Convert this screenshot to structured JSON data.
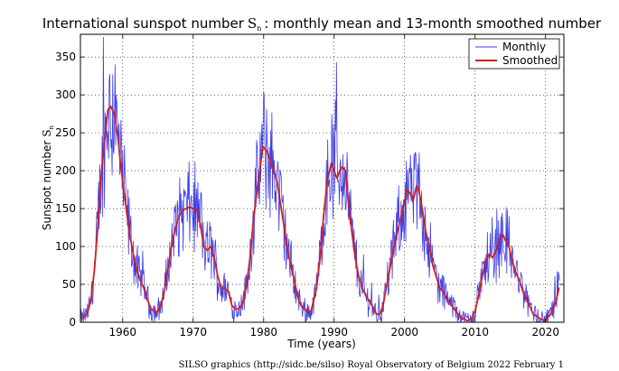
{
  "chart_data": {
    "type": "line",
    "title_prefix": "International sunspot number",
    "title_symbol": "S",
    "title_symbol_sub": "n",
    "title_suffix": ": monthly mean and 13-month smoothed number",
    "xlabel": "Time (years)",
    "ylabel_prefix": "Sunspot number",
    "ylabel_symbol": "S",
    "ylabel_symbol_sub": "n",
    "xlim": [
      1954,
      2022.6
    ],
    "ylim": [
      0,
      380
    ],
    "x_ticks": [
      1960,
      1970,
      1980,
      1990,
      2000,
      2010,
      2020
    ],
    "y_ticks": [
      0,
      50,
      100,
      150,
      200,
      250,
      300,
      350
    ],
    "grid": true,
    "legend_position": "top-right",
    "series": [
      {
        "name": "Monthly",
        "color": "#3d3de8",
        "sampling": "monthly",
        "envelope": "smoothed"
      },
      {
        "name": "Smoothed",
        "color": "#d11f1f",
        "x": [
          1954.3,
          1955.0,
          1955.5,
          1956.0,
          1956.5,
          1957.0,
          1957.5,
          1957.9,
          1958.3,
          1958.8,
          1959.3,
          1959.8,
          1960.5,
          1961.0,
          1961.5,
          1962.0,
          1962.5,
          1963.0,
          1963.5,
          1964.0,
          1964.8,
          1965.5,
          1966.0,
          1966.5,
          1967.0,
          1967.5,
          1968.0,
          1968.5,
          1969.0,
          1969.5,
          1970.0,
          1970.5,
          1971.0,
          1971.5,
          1972.0,
          1972.5,
          1973.0,
          1973.5,
          1974.0,
          1974.5,
          1975.0,
          1975.5,
          1976.0,
          1976.5,
          1977.0,
          1977.5,
          1978.0,
          1978.5,
          1979.0,
          1979.5,
          1979.9,
          1980.5,
          1981.0,
          1981.5,
          1982.0,
          1982.5,
          1983.0,
          1983.5,
          1984.0,
          1984.5,
          1985.0,
          1985.5,
          1986.0,
          1986.7,
          1987.0,
          1987.5,
          1988.0,
          1988.5,
          1989.0,
          1989.6,
          1990.0,
          1990.4,
          1990.8,
          1991.2,
          1991.6,
          1992.0,
          1992.5,
          1993.0,
          1993.5,
          1994.0,
          1994.5,
          1995.0,
          1995.5,
          1996.0,
          1996.5,
          1997.0,
          1997.5,
          1998.0,
          1998.5,
          1999.0,
          1999.5,
          2000.0,
          2000.3,
          2000.8,
          2001.2,
          2001.7,
          2002.0,
          2002.5,
          2003.0,
          2003.5,
          2004.0,
          2004.5,
          2005.0,
          2005.5,
          2006.0,
          2006.5,
          2007.0,
          2007.5,
          2008.0,
          2008.9,
          2009.5,
          2010.0,
          2010.5,
          2011.0,
          2011.5,
          2012.0,
          2012.5,
          2013.0,
          2013.5,
          2014.0,
          2014.3,
          2014.8,
          2015.3,
          2015.8,
          2016.3,
          2016.8,
          2017.3,
          2017.8,
          2018.3,
          2018.8,
          2019.3,
          2019.9,
          2020.5,
          2021.0,
          2021.5,
          2021.9
        ],
        "values": [
          5,
          12,
          30,
          70,
          130,
          200,
          245,
          280,
          285,
          275,
          245,
          200,
          150,
          115,
          90,
          70,
          55,
          45,
          30,
          18,
          12,
          25,
          45,
          75,
          105,
          125,
          140,
          148,
          150,
          152,
          150,
          148,
          130,
          100,
          95,
          100,
          85,
          60,
          45,
          45,
          40,
          22,
          17,
          18,
          25,
          45,
          80,
          130,
          170,
          205,
          232,
          225,
          210,
          200,
          180,
          150,
          120,
          90,
          70,
          48,
          28,
          20,
          15,
          14,
          25,
          45,
          85,
          140,
          185,
          210,
          200,
          190,
          200,
          205,
          200,
          160,
          120,
          85,
          60,
          45,
          35,
          28,
          20,
          11,
          10,
          25,
          50,
          75,
          100,
          120,
          140,
          160,
          175,
          170,
          160,
          180,
          175,
          150,
          120,
          100,
          75,
          60,
          45,
          40,
          30,
          25,
          18,
          12,
          6,
          2,
          5,
          15,
          35,
          60,
          80,
          90,
          85,
          95,
          110,
          115,
          108,
          100,
          80,
          65,
          55,
          40,
          30,
          20,
          10,
          8,
          4,
          2,
          8,
          15,
          28,
          45
        ]
      }
    ]
  },
  "credit": {
    "text": "SILSO graphics (http://sidc.be/silso)  Royal Observatory of Belgium  2022 February 1"
  }
}
